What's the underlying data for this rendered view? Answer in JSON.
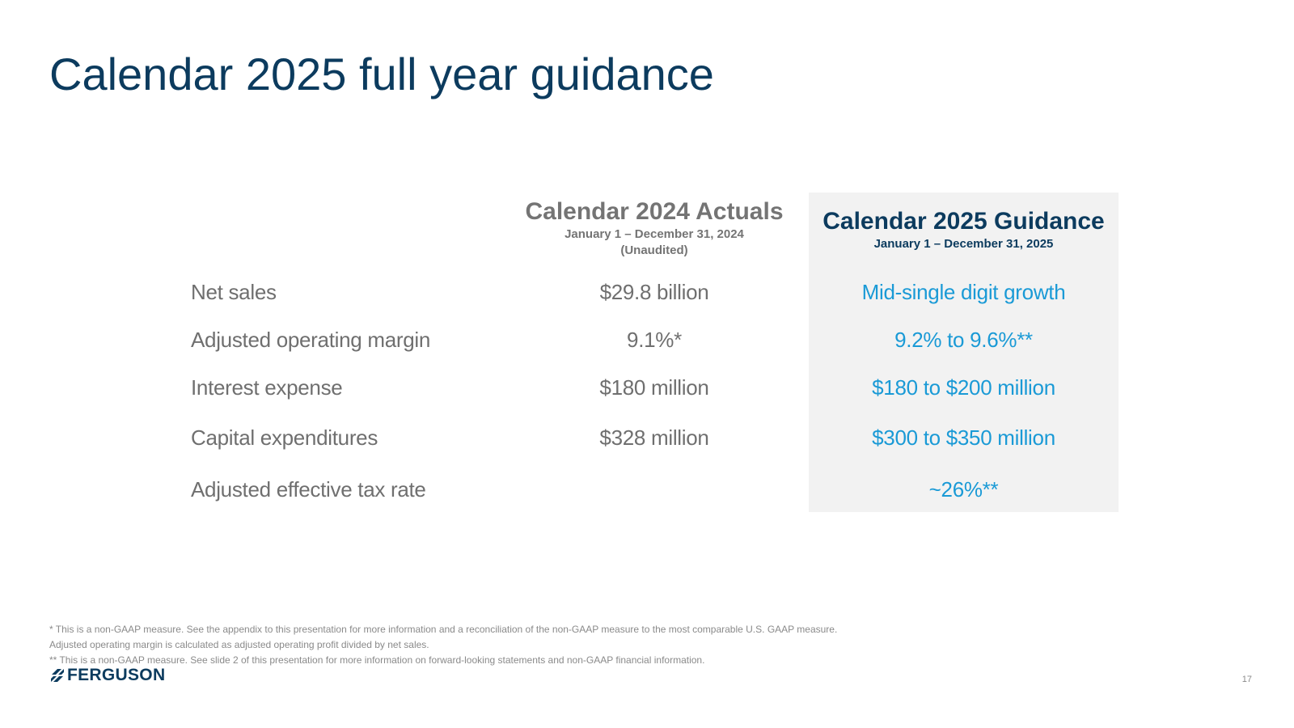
{
  "slide": {
    "title": "Calendar 2025 full year guidance",
    "page_number": "17"
  },
  "columns": {
    "actuals": {
      "title": "Calendar 2024 Actuals",
      "date_range": "January 1 – December 31, 2024",
      "note": "(Unaudited)"
    },
    "guidance": {
      "title": "Calendar 2025 Guidance",
      "date_range": "January 1 – December 31, 2025"
    }
  },
  "rows": [
    {
      "label": "Net sales",
      "actual": "$29.8 billion",
      "guidance": "Mid-single digit growth"
    },
    {
      "label": "Adjusted operating margin",
      "actual": "9.1%*",
      "guidance": "9.2% to 9.6%**"
    },
    {
      "label": "Interest expense",
      "actual": "$180 million",
      "guidance": "$180 to $200 million"
    },
    {
      "label": "Capital expenditures",
      "actual": "$328 million",
      "guidance": "$300 to $350 million"
    },
    {
      "label": "Adjusted effective tax rate",
      "actual": "",
      "guidance": "~26%**"
    }
  ],
  "footnotes": [
    "*  This is a non-GAAP measure. See the appendix to this presentation for more information and a reconciliation of the non-GAAP measure to the most comparable U.S. GAAP measure. Adjusted operating margin is calculated as adjusted operating profit divided by net sales.",
    "** This is a non-GAAP measure. See slide 2 of this presentation for more information on forward-looking statements and non-GAAP financial information."
  ],
  "logo": {
    "text": "FERGUSON",
    "icon": "ferguson-logo-icon"
  },
  "colors": {
    "title": "#0c3b5e",
    "guidance_value": "#1a9ad6",
    "body_text": "#6f6f6f",
    "panel_background": "#f2f2f2"
  }
}
